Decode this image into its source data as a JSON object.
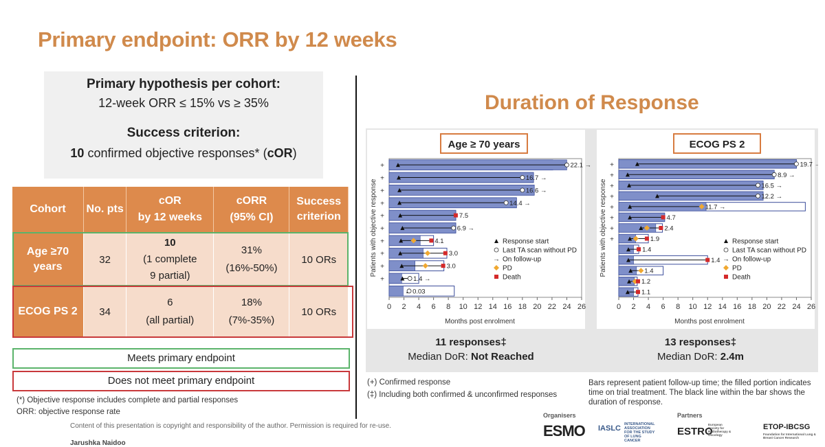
{
  "slide": {
    "title": "Primary endpoint: ORR by 12 weeks"
  },
  "hypothesis": {
    "heading": "Primary hypothesis per cohort:",
    "line": "12-week ORR ≤ 15% vs ≥ 35%",
    "success_heading": "Success criterion:",
    "success_count": "10",
    "success_text": " confirmed objective responses* (",
    "success_abbr": "cOR",
    "success_close": ")"
  },
  "table": {
    "headers": [
      "Cohort",
      "No. pts",
      "cOR\nby 12 weeks",
      "cORR\n(95% CI)",
      "Success\ncriterion"
    ],
    "rows": [
      {
        "cohort": "Age ≥70 years",
        "pts": "32",
        "cor_main": "10",
        "cor_sub1": "(1 complete",
        "cor_sub2": "9 partial)",
        "corr": "31%",
        "ci": "(16%-50%)",
        "criterion": "10 ORs"
      },
      {
        "cohort": "ECOG PS 2",
        "pts": "34",
        "cor_main": "6",
        "cor_sub1": "(all partial)",
        "cor_sub2": "",
        "corr": "18%",
        "ci": "(7%-35%)",
        "criterion": "10 ORs"
      }
    ]
  },
  "legend_boxes": {
    "meets": "Meets primary endpoint",
    "not_meets": "Does not meet primary endpoint"
  },
  "footnotes": {
    "or_def": "(*) Objective response includes complete and partial responses",
    "orr_def": "ORR: objective response rate",
    "copyright": "Content of this presentation is copyright and responsibility of the author. Permission is required for re-use.",
    "author": "Jarushka Naidoo"
  },
  "dor": {
    "title": "Duration of Response",
    "confirmed_note": "(+) Confirmed response",
    "including_note": "(‡) Including both confirmed & unconfirmed responses",
    "bars_note": "Bars represent patient follow-up time; the filled portion indicates time on trial treatment. The black line within the bar shows the duration of response."
  },
  "logos": {
    "organisers": "Organisers",
    "partners": "Partners",
    "esmo": "ESMO",
    "iaslc": "IASLC",
    "iaslc_sub": "INTERNATIONAL ASSOCIATION FOR THE STUDY OF LUNG CANCER",
    "estro": "ESTRO",
    "estro_sub": "European Society for Radiotherapy & Oncology",
    "etop": "ETOP-IBCSG",
    "etop_sub": "Foundation for International Lung & Breast Cancer Research"
  },
  "chart_data": [
    {
      "type": "bar",
      "panel_title": "Age ≥ 70 years",
      "xlabel": "Months post enrolment",
      "ylabel": "Patients with objective response",
      "xlim": [
        0,
        26
      ],
      "xticks": [
        0,
        2,
        4,
        6,
        8,
        10,
        12,
        14,
        16,
        18,
        20,
        22,
        24,
        26
      ],
      "legend": [
        "Response start",
        "Last TA scan without PD",
        "On follow-up",
        "PD",
        "Death"
      ],
      "legend_placement": "bottom-right",
      "summary_count": "11 responses‡",
      "summary_label": "Median DoR: ",
      "summary_value": "Not Reached",
      "patients": [
        {
          "label": "22.1",
          "arrow": true,
          "confirmed": true,
          "followup": 22.1,
          "treatment": 24.0,
          "start": 1.2,
          "end_marker": "circle",
          "end": 24.0
        },
        {
          "label": "16.7",
          "arrow": true,
          "confirmed": true,
          "followup": 19.5,
          "treatment": 19.5,
          "start": 1.3,
          "end_marker": "circle",
          "end": 18.0
        },
        {
          "label": "16.6",
          "arrow": true,
          "confirmed": true,
          "followup": 19.6,
          "treatment": 19.6,
          "start": 1.4,
          "end_marker": "circle",
          "end": 18.0
        },
        {
          "label": "14.4",
          "arrow": true,
          "confirmed": true,
          "followup": 17.2,
          "treatment": 17.2,
          "start": 1.4,
          "end_marker": "circle",
          "end": 15.8
        },
        {
          "label": "7.5",
          "arrow": false,
          "confirmed": true,
          "followup": 9.0,
          "treatment": 9.0,
          "start": 1.5,
          "end_marker": "death",
          "end": 9.0
        },
        {
          "label": "6.9",
          "arrow": true,
          "confirmed": true,
          "followup": 9.0,
          "treatment": 9.0,
          "start": 1.8,
          "end_marker": "circle",
          "end": 8.7
        },
        {
          "label": "4.1",
          "arrow": false,
          "confirmed": true,
          "followup": 6.0,
          "treatment": 4.2,
          "start": 1.6,
          "end_marker": "pd_death",
          "end": 5.7
        },
        {
          "label": "3.0",
          "arrow": false,
          "confirmed": true,
          "followup": 7.8,
          "treatment": 4.6,
          "start": 1.5,
          "end_marker": "pd_death",
          "end": 7.6
        },
        {
          "label": "3.0",
          "arrow": false,
          "confirmed": true,
          "followup": 7.4,
          "treatment": 3.5,
          "start": 1.7,
          "end_marker": "pd_death",
          "end": 7.3
        },
        {
          "label": "1.4",
          "arrow": true,
          "confirmed": true,
          "followup": 4.0,
          "treatment": 1.7,
          "start": 1.8,
          "end_marker": "circle",
          "end": 2.8
        },
        {
          "label": "0.03",
          "arrow": false,
          "confirmed": false,
          "followup": 8.8,
          "treatment": 1.9,
          "start": 2.6,
          "end_marker": "circle",
          "end": 2.7
        }
      ]
    },
    {
      "type": "bar",
      "panel_title": "ECOG PS 2",
      "xlabel": "Months post enrolment",
      "ylabel": "Patients with objective response",
      "xlim": [
        0,
        26
      ],
      "xticks": [
        0,
        2,
        4,
        6,
        8,
        10,
        12,
        14,
        16,
        18,
        20,
        22,
        24,
        26
      ],
      "legend": [
        "Response start",
        "Last TA scan without PD",
        "On follow-up",
        "PD",
        "Death"
      ],
      "legend_placement": "bottom-right",
      "summary_count": "13 responses‡",
      "summary_label": "Median DoR: ",
      "summary_value": "2.4m",
      "patients": [
        {
          "label": "19.7",
          "arrow": true,
          "confirmed": true,
          "followup": 24.0,
          "treatment": 24.0,
          "start": 2.5,
          "end_marker": "circle",
          "end": 24.0
        },
        {
          "label": "8.9",
          "arrow": true,
          "confirmed": true,
          "followup": 21.0,
          "treatment": 21.0,
          "start": 1.2,
          "end_marker": "circle",
          "end": 21.0
        },
        {
          "label": "16.5",
          "arrow": true,
          "confirmed": true,
          "followup": 19.5,
          "treatment": 19.5,
          "start": 1.4,
          "end_marker": "circle",
          "end": 18.8
        },
        {
          "label": "12.2",
          "arrow": true,
          "confirmed": true,
          "followup": 19.5,
          "treatment": 19.5,
          "start": 5.2,
          "end_marker": "circle",
          "end": 18.8
        },
        {
          "label": "11.7",
          "arrow": true,
          "confirmed": true,
          "followup": 25.2,
          "treatment": 11.8,
          "start": 1.5,
          "end_marker": "pd",
          "end": 11.2
        },
        {
          "label": "4.7",
          "arrow": false,
          "confirmed": true,
          "followup": 6.2,
          "treatment": 6.2,
          "start": 1.5,
          "end_marker": "death",
          "end": 6.0
        },
        {
          "label": "2.4",
          "arrow": false,
          "confirmed": true,
          "followup": 5.9,
          "treatment": 5.0,
          "start": 3.0,
          "end_marker": "pd_death",
          "end": 5.7
        },
        {
          "label": "1.9",
          "arrow": false,
          "confirmed": true,
          "followup": 4.0,
          "treatment": 2.3,
          "start": 1.5,
          "end_marker": "pd_death",
          "end": 3.8
        },
        {
          "label": "1.4",
          "arrow": false,
          "confirmed": false,
          "followup": 2.7,
          "treatment": 2.0,
          "start": 1.3,
          "end_marker": "death",
          "end": 2.7
        },
        {
          "label": "1.4",
          "arrow": false,
          "confirmed": false,
          "followup": 12.0,
          "treatment": 2.0,
          "start": 1.3,
          "end_marker": "death_far",
          "end": 12.0
        },
        {
          "label": "1.4",
          "arrow": false,
          "confirmed": false,
          "followup": 6.0,
          "treatment": 2.4,
          "start": 1.6,
          "end_marker": "pd",
          "end": 3.0
        },
        {
          "label": "1.2",
          "arrow": false,
          "confirmed": false,
          "followup": 2.5,
          "treatment": 2.1,
          "start": 1.4,
          "end_marker": "pd_death",
          "end": 2.6
        },
        {
          "label": "1.1",
          "arrow": false,
          "confirmed": false,
          "followup": 2.6,
          "treatment": 2.0,
          "start": 1.2,
          "end_marker": "death",
          "end": 2.6
        }
      ]
    }
  ]
}
